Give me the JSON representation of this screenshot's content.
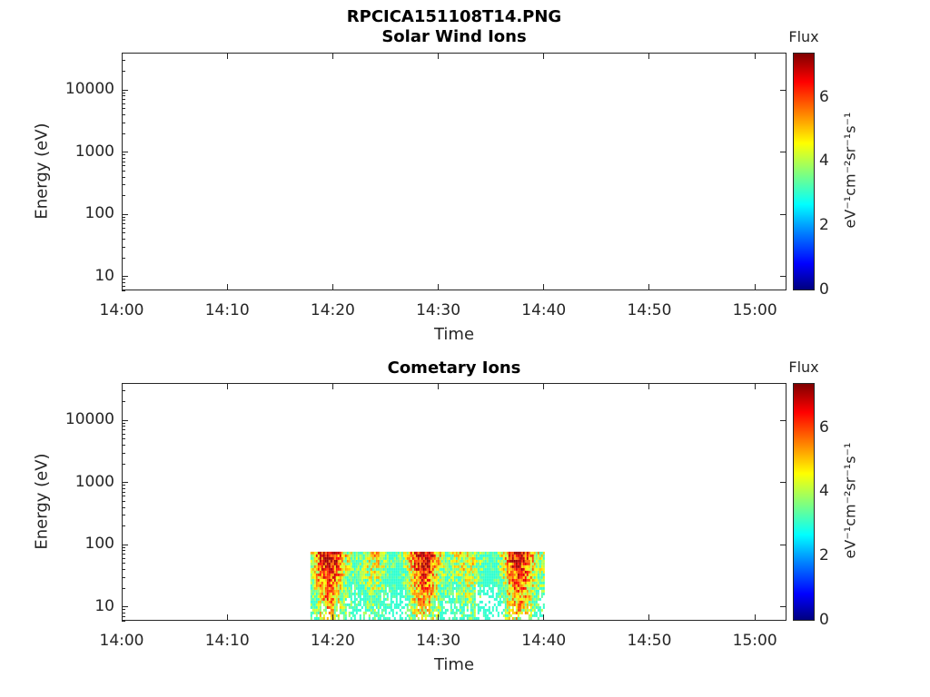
{
  "figure_title": "RPCICA151108T14.PNG",
  "chart_data": [
    {
      "type": "heatmap",
      "title": "Solar Wind Ions",
      "xlabel": "Time",
      "ylabel": "Energy (eV)",
      "x_ticks": [
        "14:00",
        "14:10",
        "14:20",
        "14:30",
        "14:40",
        "14:50",
        "15:00"
      ],
      "xlim_minutes": [
        0,
        63
      ],
      "y_scale": "log",
      "y_ticks": [
        10,
        100,
        1000,
        10000
      ],
      "y_tick_labels": [
        "10",
        "100",
        "1000",
        "10000"
      ],
      "ylim": [
        6,
        40000
      ],
      "colorbar": {
        "title": "Flux",
        "unit": "eV⁻¹cm⁻²sr⁻¹s⁻¹",
        "ticks": [
          "0",
          "2",
          "4",
          "6"
        ],
        "range": [
          0,
          7.4
        ],
        "colormap": "jet"
      },
      "data_extent": null
    },
    {
      "type": "heatmap",
      "title": "Cometary Ions",
      "xlabel": "Time",
      "ylabel": "Energy (eV)",
      "x_ticks": [
        "14:00",
        "14:10",
        "14:20",
        "14:30",
        "14:40",
        "14:50",
        "15:00"
      ],
      "xlim_minutes": [
        0,
        63
      ],
      "y_scale": "log",
      "y_ticks": [
        10,
        100,
        1000,
        10000
      ],
      "y_tick_labels": [
        "10",
        "100",
        "1000",
        "10000"
      ],
      "ylim": [
        6,
        40000
      ],
      "colorbar": {
        "title": "Flux",
        "unit": "eV⁻¹cm⁻²sr⁻¹s⁻¹",
        "ticks": [
          "0",
          "2",
          "4",
          "6"
        ],
        "range": [
          0,
          7.4
        ],
        "colormap": "jet"
      },
      "data_extent": {
        "t_start_minutes": 17.8,
        "t_end_minutes": 40.0,
        "e_min": 6,
        "e_max": 80,
        "typical_flux": [
          3,
          7
        ]
      }
    }
  ]
}
